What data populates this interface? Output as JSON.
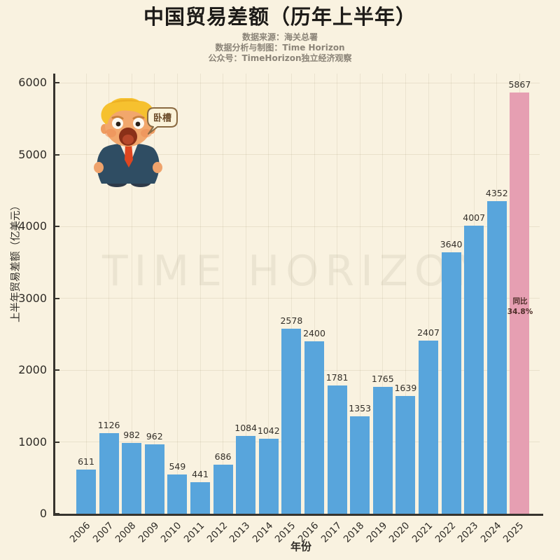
{
  "header": {
    "title": "中国贸易差额（历年上半年）",
    "subtitles": [
      "数据来源：海关总署",
      "数据分析与制图：Time Horizon",
      "公众号：TimeHorizon独立经济观察"
    ]
  },
  "watermark": "TIME HORIZON",
  "sticker": {
    "description": "trump-figurine",
    "speech_bubble": "卧槽"
  },
  "chart_data": {
    "type": "bar",
    "categories": [
      "2006",
      "2007",
      "2008",
      "2009",
      "2010",
      "2011",
      "2012",
      "2013",
      "2014",
      "2015",
      "2016",
      "2017",
      "2018",
      "2019",
      "2020",
      "2021",
      "2022",
      "2023",
      "2024",
      "2025"
    ],
    "values": [
      611,
      1126,
      982,
      962,
      549,
      441,
      686,
      1084,
      1042,
      2578,
      2400,
      1781,
      1353,
      1765,
      1639,
      2407,
      3640,
      4007,
      4352,
      5867
    ],
    "title": "中国贸易差额（历年上半年）",
    "xlabel": "年份",
    "ylabel": "上半年贸易差额（亿美元）",
    "ylim": [
      0,
      6000
    ],
    "yticks": [
      0,
      1000,
      2000,
      3000,
      4000,
      5000,
      6000
    ],
    "grid": true,
    "legend": "none",
    "bar_labels_shown": true,
    "series_color": "#58a5dc",
    "highlight": {
      "index": 19,
      "category": "2025",
      "value": 5867,
      "color": "#e69fb2",
      "annotation": "同比\n34.8%"
    }
  },
  "colors": {
    "background": "#f9f2e0",
    "bar_blue": "#58a5dc",
    "bar_pink": "#e69fb2",
    "axis": "#37342e",
    "text_dark": "#2e2b26",
    "subtitle_gray": "#8b8478"
  }
}
